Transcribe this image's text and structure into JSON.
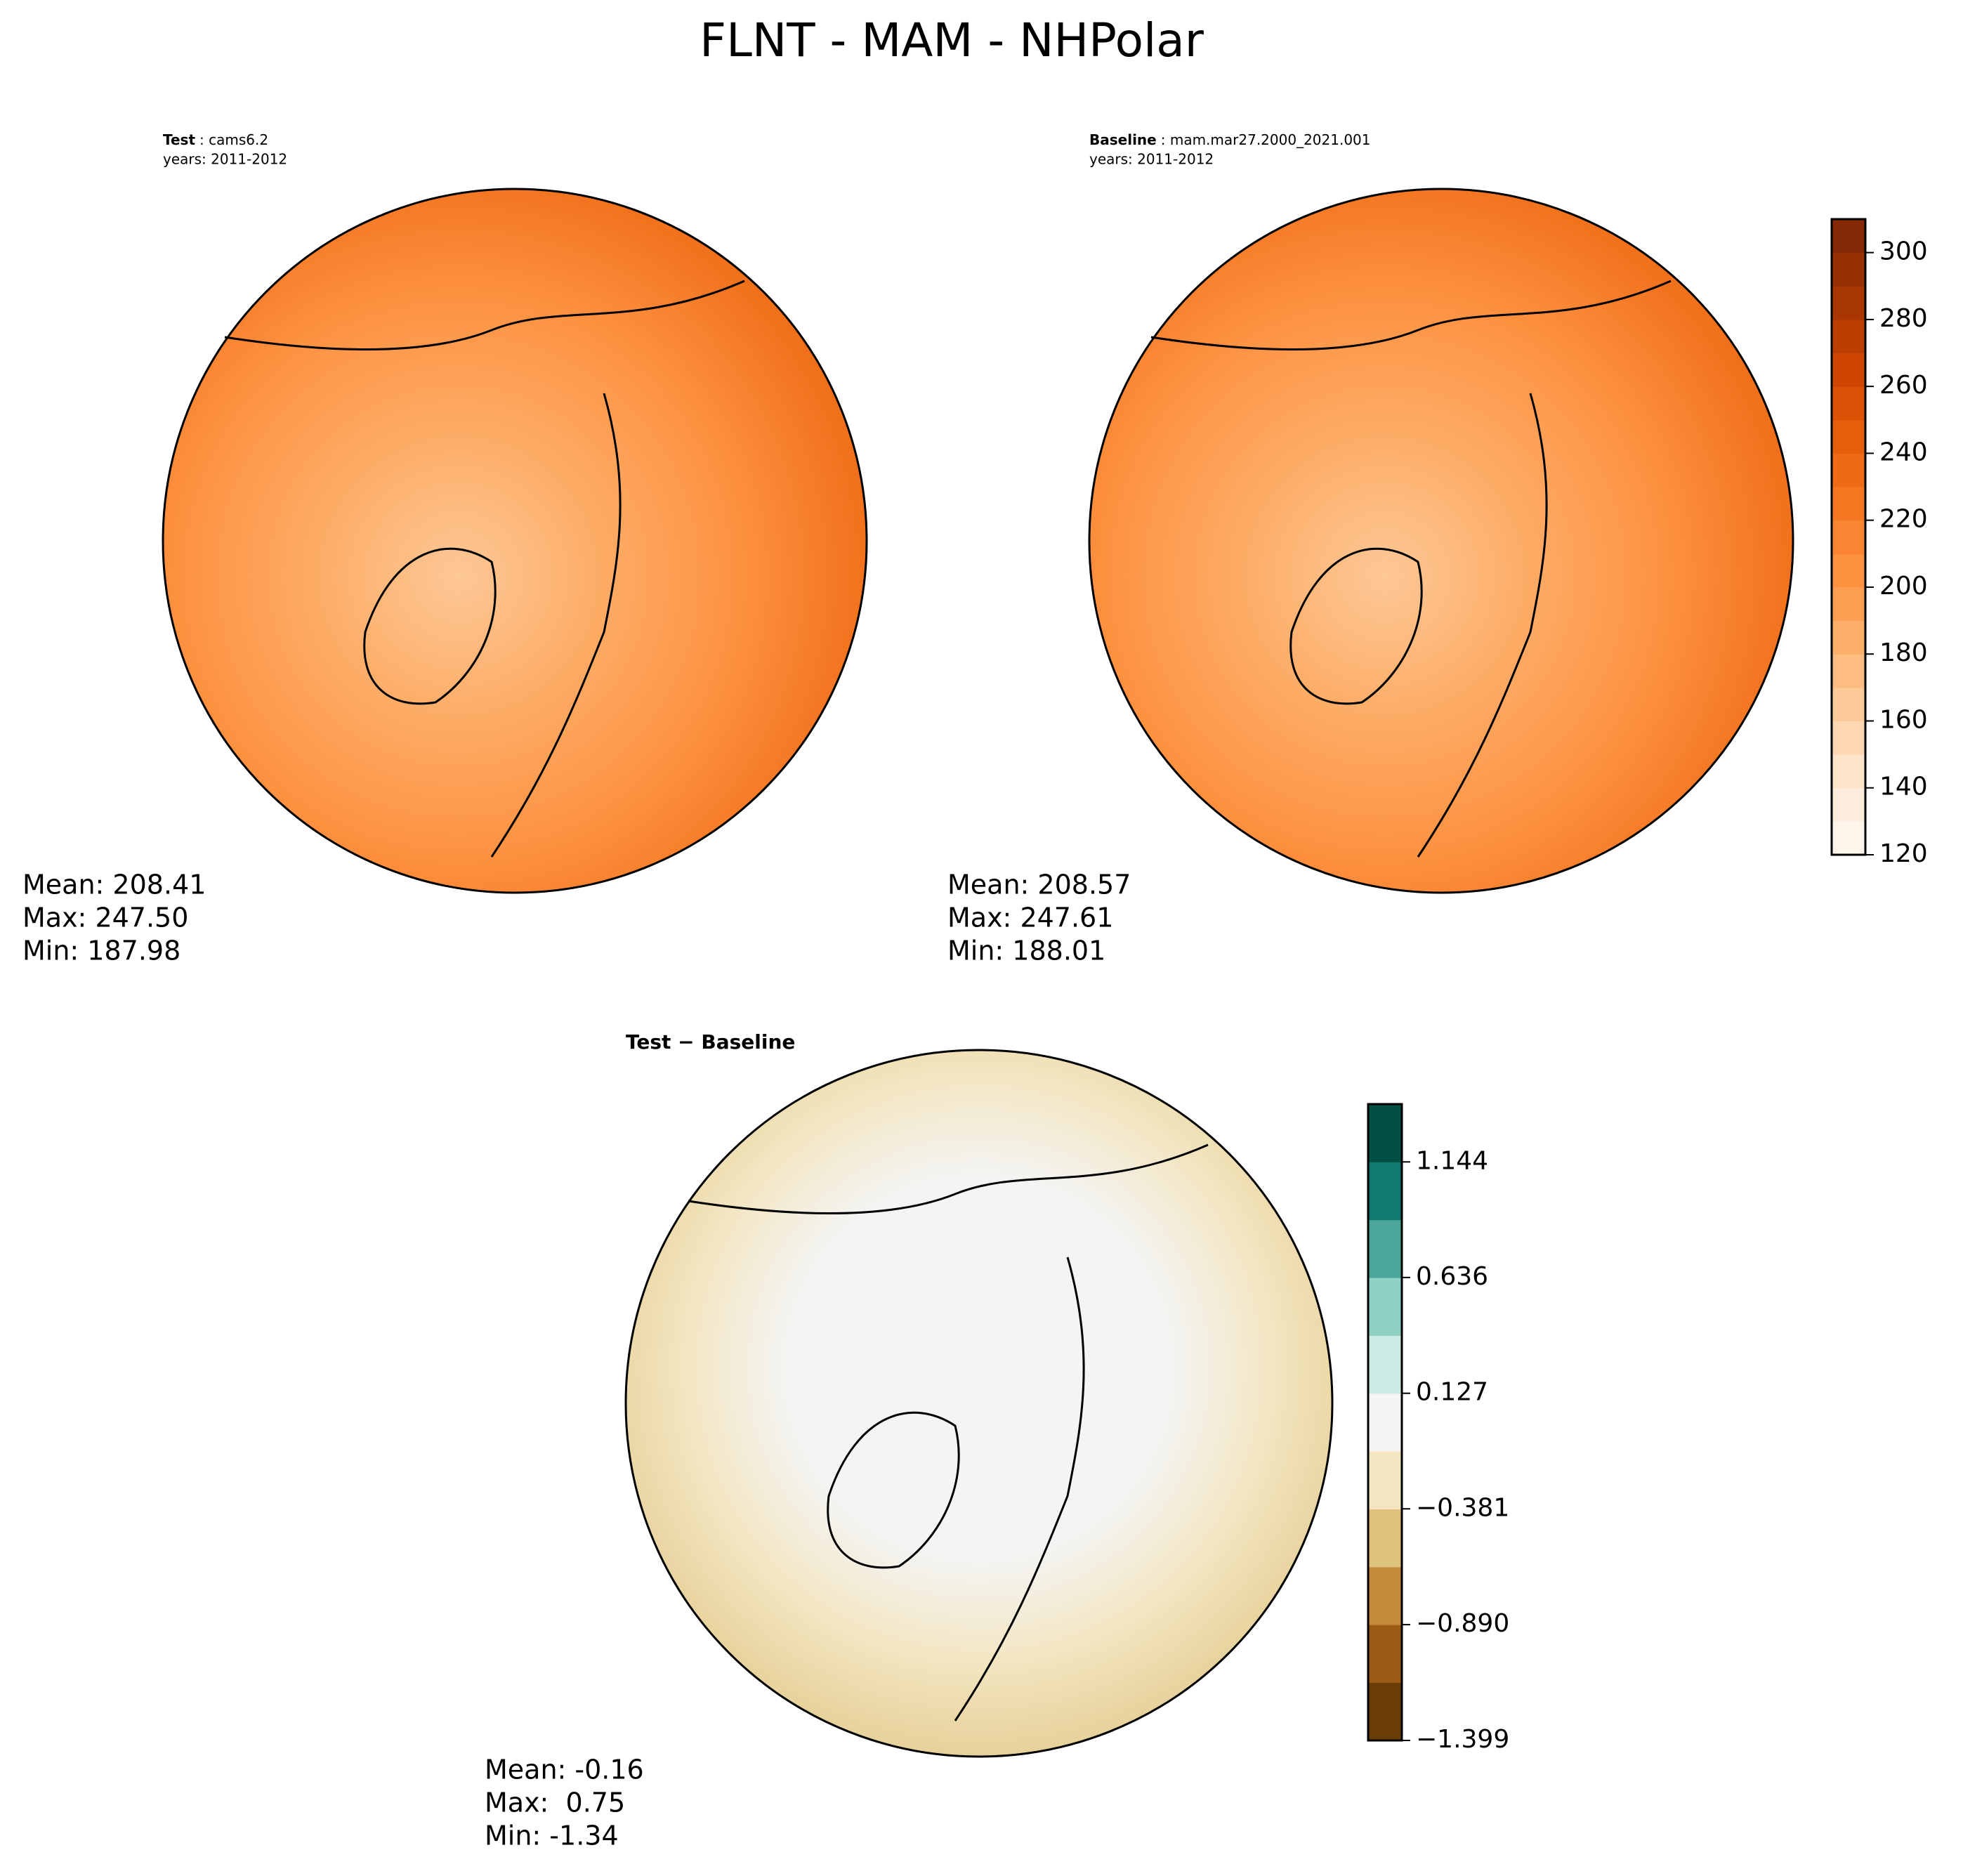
{
  "chart_data": [
    {
      "type": "map",
      "title": "FLNT - MAM - NHPolar",
      "case_label": "Test",
      "case_name": ": cams6.2",
      "years": "years: 2011-2012",
      "stats": [
        "Mean: 208.41",
        "Max: 247.50",
        "Min: 187.98"
      ]
    },
    {
      "type": "map",
      "case_label": "Baseline",
      "case_name": ": mam.mar27.2000_2021.001",
      "years": "years: 2011-2012",
      "stats": [
        "Mean: 208.57",
        "Max: 247.61",
        "Min: 188.01"
      ],
      "colorbar": {
        "ylim": [
          120,
          310
        ],
        "yticks": [
          120,
          140,
          160,
          180,
          200,
          220,
          240,
          260,
          280,
          300
        ],
        "colors": [
          "#fff5eb",
          "#feeddc",
          "#fee4ca",
          "#fdd8b2",
          "#fdcb99",
          "#fdbd81",
          "#fdae69",
          "#fd9f53",
          "#fd9140",
          "#fa8431",
          "#f57722",
          "#ef6a14",
          "#e65d0b",
          "#dc5005",
          "#cf4602",
          "#bc3f02",
          "#a93703",
          "#952f04",
          "#832804"
        ]
      }
    },
    {
      "type": "map",
      "case_label": "Test − Baseline",
      "stats": [
        "Mean: -0.16",
        "Max:  0.75",
        "Min: -1.34"
      ],
      "colorbar": {
        "ylim": [
          -1.399,
          1.398
        ],
        "yticks": [
          {
            "value": -1.399,
            "label": "−1.399"
          },
          {
            "value": -0.89,
            "label": "−0.890"
          },
          {
            "value": -0.381,
            "label": "−0.381"
          },
          0.127,
          0.636,
          1.144
        ],
        "colors": [
          "#6a3d07",
          "#9c5b14",
          "#c48a3a",
          "#dfc27d",
          "#f3e5c0",
          "#f3f4f3",
          "#cdeae4",
          "#8fd1c3",
          "#4aa69a",
          "#117a6f",
          "#024f44"
        ]
      }
    }
  ]
}
